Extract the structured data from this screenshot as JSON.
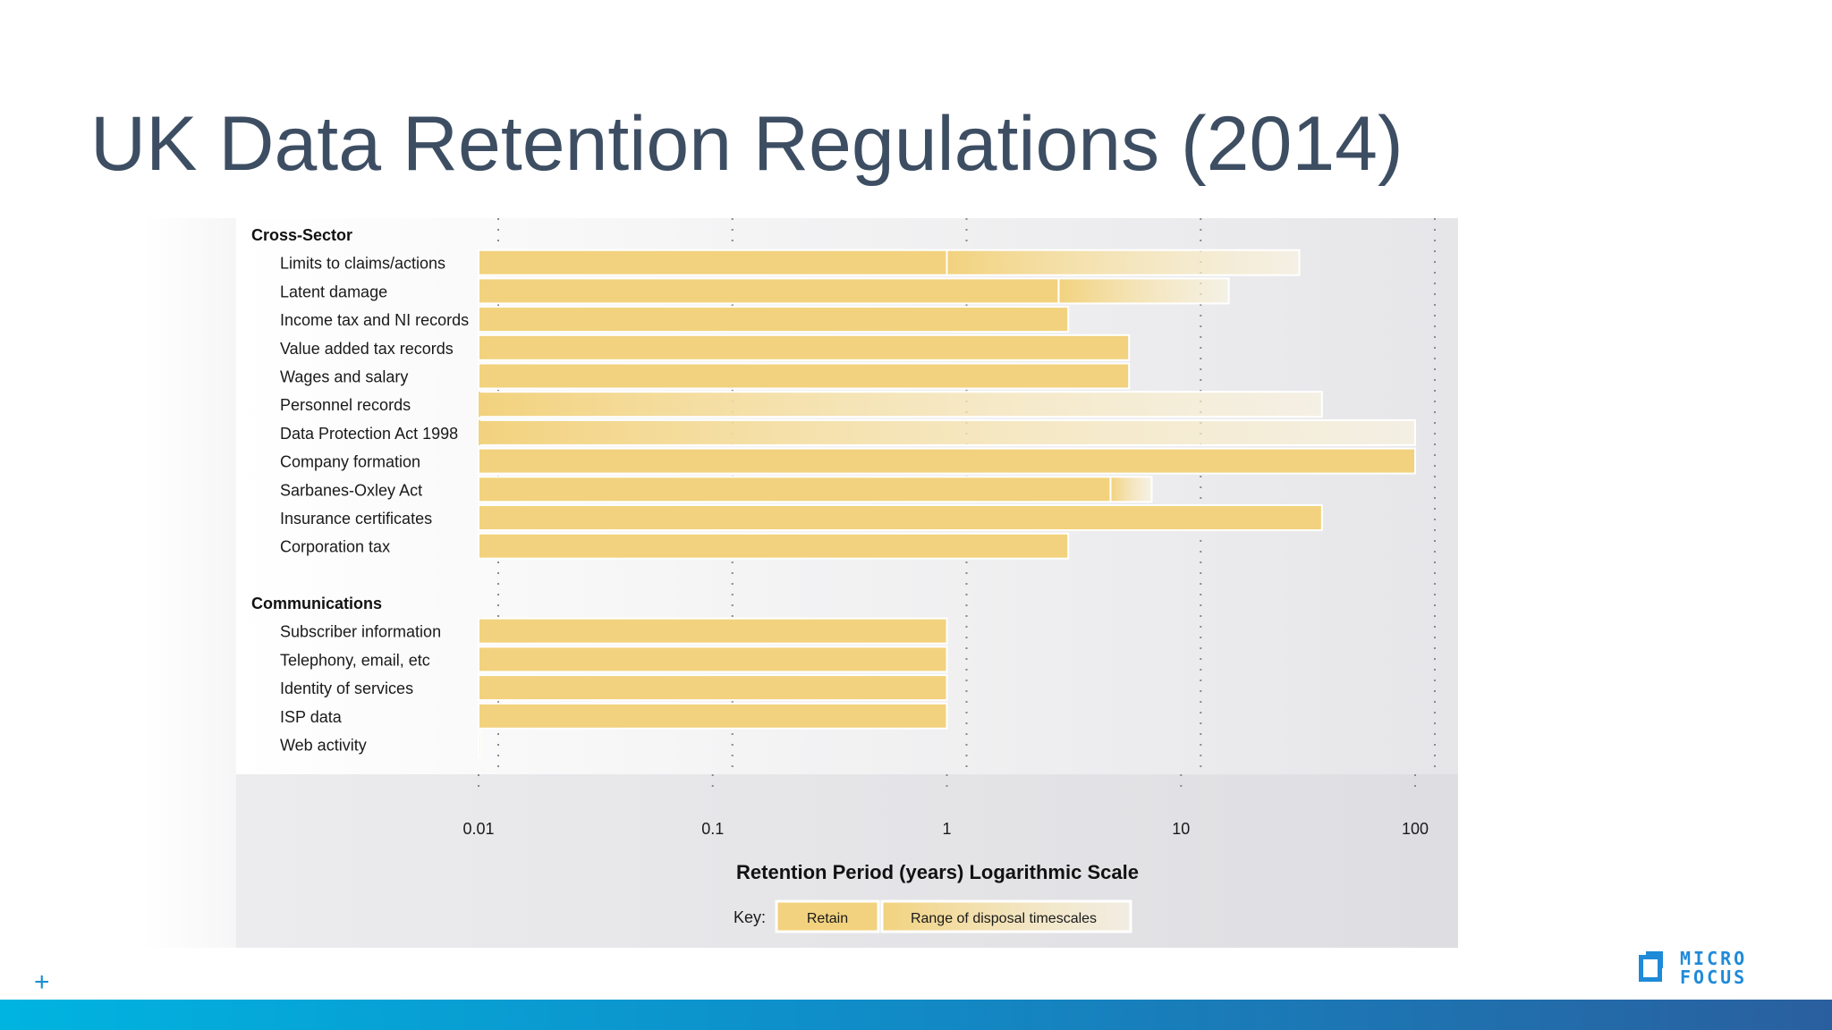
{
  "slide": {
    "title": "UK Data Retention Regulations (2014)",
    "logo_line1": "MICRO",
    "logo_line2": "FOCUS",
    "logo_mark": "®"
  },
  "colors": {
    "retain": "#f2d27e",
    "range_fade_end": "#fbf4df",
    "title": "#3d4e63",
    "accent": "#1f8ad8"
  },
  "chart_data": {
    "type": "bar",
    "orientation": "horizontal",
    "scale": "log",
    "xlabel": "Retention Period (years) Logarithmic Scale",
    "x_ticks": [
      0.01,
      0.1,
      1,
      10,
      100
    ],
    "x_tick_labels": [
      "0.01",
      "0.1",
      "1",
      "10",
      "100"
    ],
    "xlim": [
      0.01,
      100
    ],
    "grid": "vertical dotted",
    "legend": {
      "title": "Key:",
      "entries": [
        "Retain",
        "Range of disposal timescales"
      ],
      "position": "bottom-center"
    },
    "groups": [
      {
        "name": "Cross-Sector",
        "items": [
          {
            "label": "Limits to claims/actions",
            "retain": 1,
            "range": [
              1,
              32
            ]
          },
          {
            "label": "Latent damage",
            "retain": 3,
            "range": [
              3,
              16
            ]
          },
          {
            "label": "Income tax and NI records",
            "retain": 3.3,
            "range": null
          },
          {
            "label": "Value added tax records",
            "retain": 6,
            "range": null
          },
          {
            "label": "Wages and salary",
            "retain": 6,
            "range": null
          },
          {
            "label": "Personnel records",
            "retain": 0.01,
            "range": [
              0.01,
              40
            ]
          },
          {
            "label": "Data Protection Act 1998",
            "retain": 0.01,
            "range": [
              0.01,
              100
            ]
          },
          {
            "label": "Company formation",
            "retain": 100,
            "range": null
          },
          {
            "label": "Sarbanes-Oxley Act",
            "retain": 5,
            "range": [
              5,
              7.5
            ]
          },
          {
            "label": "Insurance certificates",
            "retain": 40,
            "range": null
          },
          {
            "label": "Corporation tax",
            "retain": 3.3,
            "range": null
          }
        ]
      },
      {
        "name": "Communications",
        "items": [
          {
            "label": "Subscriber information",
            "retain": 1,
            "range": null
          },
          {
            "label": "Telephony, email, etc",
            "retain": 1,
            "range": null
          },
          {
            "label": "Identity of services",
            "retain": 1,
            "range": null
          },
          {
            "label": "ISP data",
            "retain": 1,
            "range": null
          },
          {
            "label": "Web activity",
            "retain": 0.0102,
            "range": null
          }
        ]
      }
    ]
  }
}
